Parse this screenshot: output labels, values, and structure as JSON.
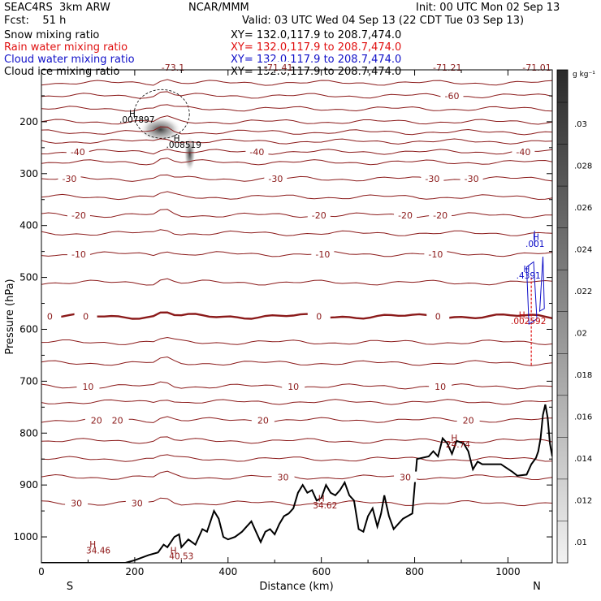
{
  "header": {
    "project": "SEAC4RS  3km ARW",
    "fcst": "Fcst:    51 h",
    "center": "NCAR/MMM",
    "init": "Init: 00 UTC Mon 02 Sep 13",
    "valid": "Valid: 03 UTC Wed 04 Sep 13 (22 CDT Tue 03 Sep 13)",
    "fields": [
      {
        "name": "Snow mixing ratio",
        "xy": "XY= 132.0,117.9 to 208.7,474.0",
        "color": "#000000"
      },
      {
        "name": "Rain water mixing ratio",
        "xy": "XY= 132.0,117.9 to 208.7,474.0",
        "color": "#e01010"
      },
      {
        "name": "Cloud water mixing ratio",
        "xy": "XY= 132.0,117.9 to 208.7,474.0",
        "color": "#1010c8"
      },
      {
        "name": "Cloud ice mixing ratio",
        "xy": "XY= 132.0,117.9 to 208.7,474.0",
        "color": "#000000"
      }
    ]
  },
  "chart_data": {
    "type": "contour",
    "xlabel": "Distance (km)",
    "ylabel": "Pressure (hPa)",
    "xlim": [
      0,
      1095
    ],
    "ylim": [
      1050,
      100
    ],
    "x_ticks": [
      0,
      200,
      400,
      600,
      800,
      1000
    ],
    "y_ticks": [
      200,
      300,
      400,
      500,
      600,
      700,
      800,
      900,
      1000
    ],
    "x_end_labels": {
      "left": "S",
      "right": "N"
    },
    "colorbar": {
      "unit": "g kg⁻¹",
      "labels": [
        ".03",
        ".028",
        ".026",
        ".024",
        ".022",
        ".02",
        ".018",
        ".016",
        ".014",
        ".012",
        ".01"
      ]
    },
    "temperature_contours": [
      {
        "pressure": 95,
        "labels": [
          {
            "x": 282,
            "text": "-73.1"
          },
          {
            "x": 508,
            "text": "-71.41"
          },
          {
            "x": 870,
            "text": "-71.21"
          },
          {
            "x": 1062,
            "text": "-71.01"
          }
        ]
      },
      {
        "pressure": 125,
        "labels": []
      },
      {
        "pressure": 150,
        "labels": [
          {
            "x": 880,
            "text": "-60"
          }
        ]
      },
      {
        "pressure": 175,
        "labels": []
      },
      {
        "pressure": 200,
        "labels": []
      },
      {
        "pressure": 220,
        "labels": []
      },
      {
        "pressure": 238,
        "labels": []
      },
      {
        "pressure": 258,
        "labels": [
          {
            "x": 78,
            "text": "-40"
          },
          {
            "x": 462,
            "text": "-40"
          },
          {
            "x": 1033,
            "text": "-40"
          }
        ]
      },
      {
        "pressure": 278,
        "labels": []
      },
      {
        "pressure": 310,
        "labels": [
          {
            "x": 60,
            "text": "-30"
          },
          {
            "x": 502,
            "text": "-30"
          },
          {
            "x": 838,
            "text": "-30"
          },
          {
            "x": 922,
            "text": "-30"
          }
        ]
      },
      {
        "pressure": 345,
        "labels": []
      },
      {
        "pressure": 380,
        "labels": [
          {
            "x": 80,
            "text": "-20"
          },
          {
            "x": 595,
            "text": "-20"
          },
          {
            "x": 780,
            "text": "-20"
          },
          {
            "x": 855,
            "text": "-20"
          }
        ]
      },
      {
        "pressure": 415,
        "labels": []
      },
      {
        "pressure": 455,
        "labels": [
          {
            "x": 80,
            "text": "-10"
          },
          {
            "x": 603,
            "text": "-10"
          },
          {
            "x": 845,
            "text": "-10"
          }
        ]
      },
      {
        "pressure": 510,
        "labels": []
      },
      {
        "pressure": 575,
        "labels": [
          {
            "x": 18,
            "text": "0"
          },
          {
            "x": 95,
            "text": "0"
          },
          {
            "x": 595,
            "text": "0"
          },
          {
            "x": 850,
            "text": "0"
          }
        ]
      },
      {
        "pressure": 625,
        "labels": []
      },
      {
        "pressure": 665,
        "labels": []
      },
      {
        "pressure": 710,
        "labels": [
          {
            "x": 100,
            "text": "10"
          },
          {
            "x": 540,
            "text": "10"
          },
          {
            "x": 855,
            "text": "10"
          }
        ]
      },
      {
        "pressure": 740,
        "labels": []
      },
      {
        "pressure": 775,
        "labels": [
          {
            "x": 118,
            "text": "20"
          },
          {
            "x": 163,
            "text": "20"
          },
          {
            "x": 475,
            "text": "20"
          },
          {
            "x": 915,
            "text": "20"
          }
        ]
      },
      {
        "pressure": 815,
        "labels": []
      },
      {
        "pressure": 850,
        "labels": []
      },
      {
        "pressure": 885,
        "labels": [
          {
            "x": 518,
            "text": "30"
          },
          {
            "x": 780,
            "text": "30"
          }
        ]
      },
      {
        "pressure": 935,
        "labels": [
          {
            "x": 75,
            "text": "30"
          },
          {
            "x": 205,
            "text": "30"
          }
        ]
      }
    ],
    "maxima_labels": [
      {
        "text": "H",
        "x": 195,
        "p": 190,
        "color": "#000000"
      },
      {
        "text": ".007897",
        "x": 205,
        "p": 202,
        "color": "#000000"
      },
      {
        "text": "H",
        "x": 290,
        "p": 238,
        "color": "#000000"
      },
      {
        "text": ".008519",
        "x": 305,
        "p": 250,
        "color": "#000000"
      },
      {
        "text": "H",
        "x": 1060,
        "p": 428,
        "color": "#1010c8"
      },
      {
        "text": ".001",
        "x": 1058,
        "p": 441,
        "color": "#1010c8"
      },
      {
        "text": "H",
        "x": 1040,
        "p": 490,
        "color": "#1010c8"
      },
      {
        "text": ".4391",
        "x": 1044,
        "p": 502,
        "color": "#1010c8"
      },
      {
        "text": "H",
        "x": 1030,
        "p": 578,
        "color": "#c01010"
      },
      {
        "text": ".002592",
        "x": 1044,
        "p": 590,
        "color": "#c01010"
      },
      {
        "text": "H",
        "x": 885,
        "p": 815,
        "color": "#8b1010"
      },
      {
        "text": "24.74",
        "x": 893,
        "p": 828,
        "color": "#8b1010"
      },
      {
        "text": "H",
        "x": 600,
        "p": 932,
        "color": "#8b1010"
      },
      {
        "text": "34.62",
        "x": 608,
        "p": 945,
        "color": "#8b1010"
      },
      {
        "text": "H",
        "x": 110,
        "p": 1020,
        "color": "#8b1010"
      },
      {
        "text": "34.46",
        "x": 122,
        "p": 1032,
        "color": "#8b1010"
      },
      {
        "text": "H",
        "x": 283,
        "p": 1032,
        "color": "#8b1010"
      },
      {
        "text": "40.53",
        "x": 300,
        "p": 1043,
        "color": "#8b1010"
      }
    ],
    "terrain": [
      [
        0,
        1050
      ],
      [
        180,
        1050
      ],
      [
        200,
        1045
      ],
      [
        230,
        1035
      ],
      [
        250,
        1030
      ],
      [
        262,
        1015
      ],
      [
        270,
        1020
      ],
      [
        285,
        1000
      ],
      [
        295,
        995
      ],
      [
        300,
        1020
      ],
      [
        315,
        1005
      ],
      [
        330,
        1015
      ],
      [
        345,
        985
      ],
      [
        355,
        990
      ],
      [
        370,
        950
      ],
      [
        380,
        965
      ],
      [
        390,
        1000
      ],
      [
        400,
        1005
      ],
      [
        415,
        1000
      ],
      [
        430,
        990
      ],
      [
        440,
        980
      ],
      [
        450,
        970
      ],
      [
        460,
        990
      ],
      [
        470,
        1010
      ],
      [
        480,
        990
      ],
      [
        490,
        985
      ],
      [
        500,
        995
      ],
      [
        510,
        975
      ],
      [
        520,
        960
      ],
      [
        530,
        955
      ],
      [
        540,
        945
      ],
      [
        550,
        915
      ],
      [
        560,
        900
      ],
      [
        570,
        915
      ],
      [
        580,
        910
      ],
      [
        590,
        930
      ],
      [
        600,
        925
      ],
      [
        610,
        900
      ],
      [
        620,
        915
      ],
      [
        630,
        920
      ],
      [
        640,
        910
      ],
      [
        650,
        895
      ],
      [
        660,
        920
      ],
      [
        670,
        930
      ],
      [
        680,
        985
      ],
      [
        690,
        990
      ],
      [
        700,
        960
      ],
      [
        710,
        945
      ],
      [
        720,
        980
      ],
      [
        728,
        955
      ],
      [
        735,
        920
      ],
      [
        745,
        960
      ],
      [
        755,
        985
      ],
      [
        765,
        975
      ],
      [
        775,
        965
      ],
      [
        785,
        960
      ],
      [
        795,
        955
      ],
      [
        805,
        850
      ],
      [
        830,
        845
      ],
      [
        840,
        835
      ],
      [
        850,
        845
      ],
      [
        860,
        810
      ],
      [
        870,
        820
      ],
      [
        880,
        840
      ],
      [
        890,
        815
      ],
      [
        905,
        820
      ],
      [
        915,
        835
      ],
      [
        925,
        870
      ],
      [
        935,
        855
      ],
      [
        945,
        860
      ],
      [
        960,
        860
      ],
      [
        985,
        860
      ],
      [
        1010,
        875
      ],
      [
        1020,
        882
      ],
      [
        1040,
        880
      ],
      [
        1050,
        860
      ],
      [
        1060,
        848
      ],
      [
        1065,
        835
      ],
      [
        1070,
        810
      ],
      [
        1075,
        765
      ],
      [
        1080,
        745
      ],
      [
        1085,
        770
      ],
      [
        1090,
        820
      ],
      [
        1095,
        845
      ]
    ],
    "freezing_level_p": 575
  }
}
